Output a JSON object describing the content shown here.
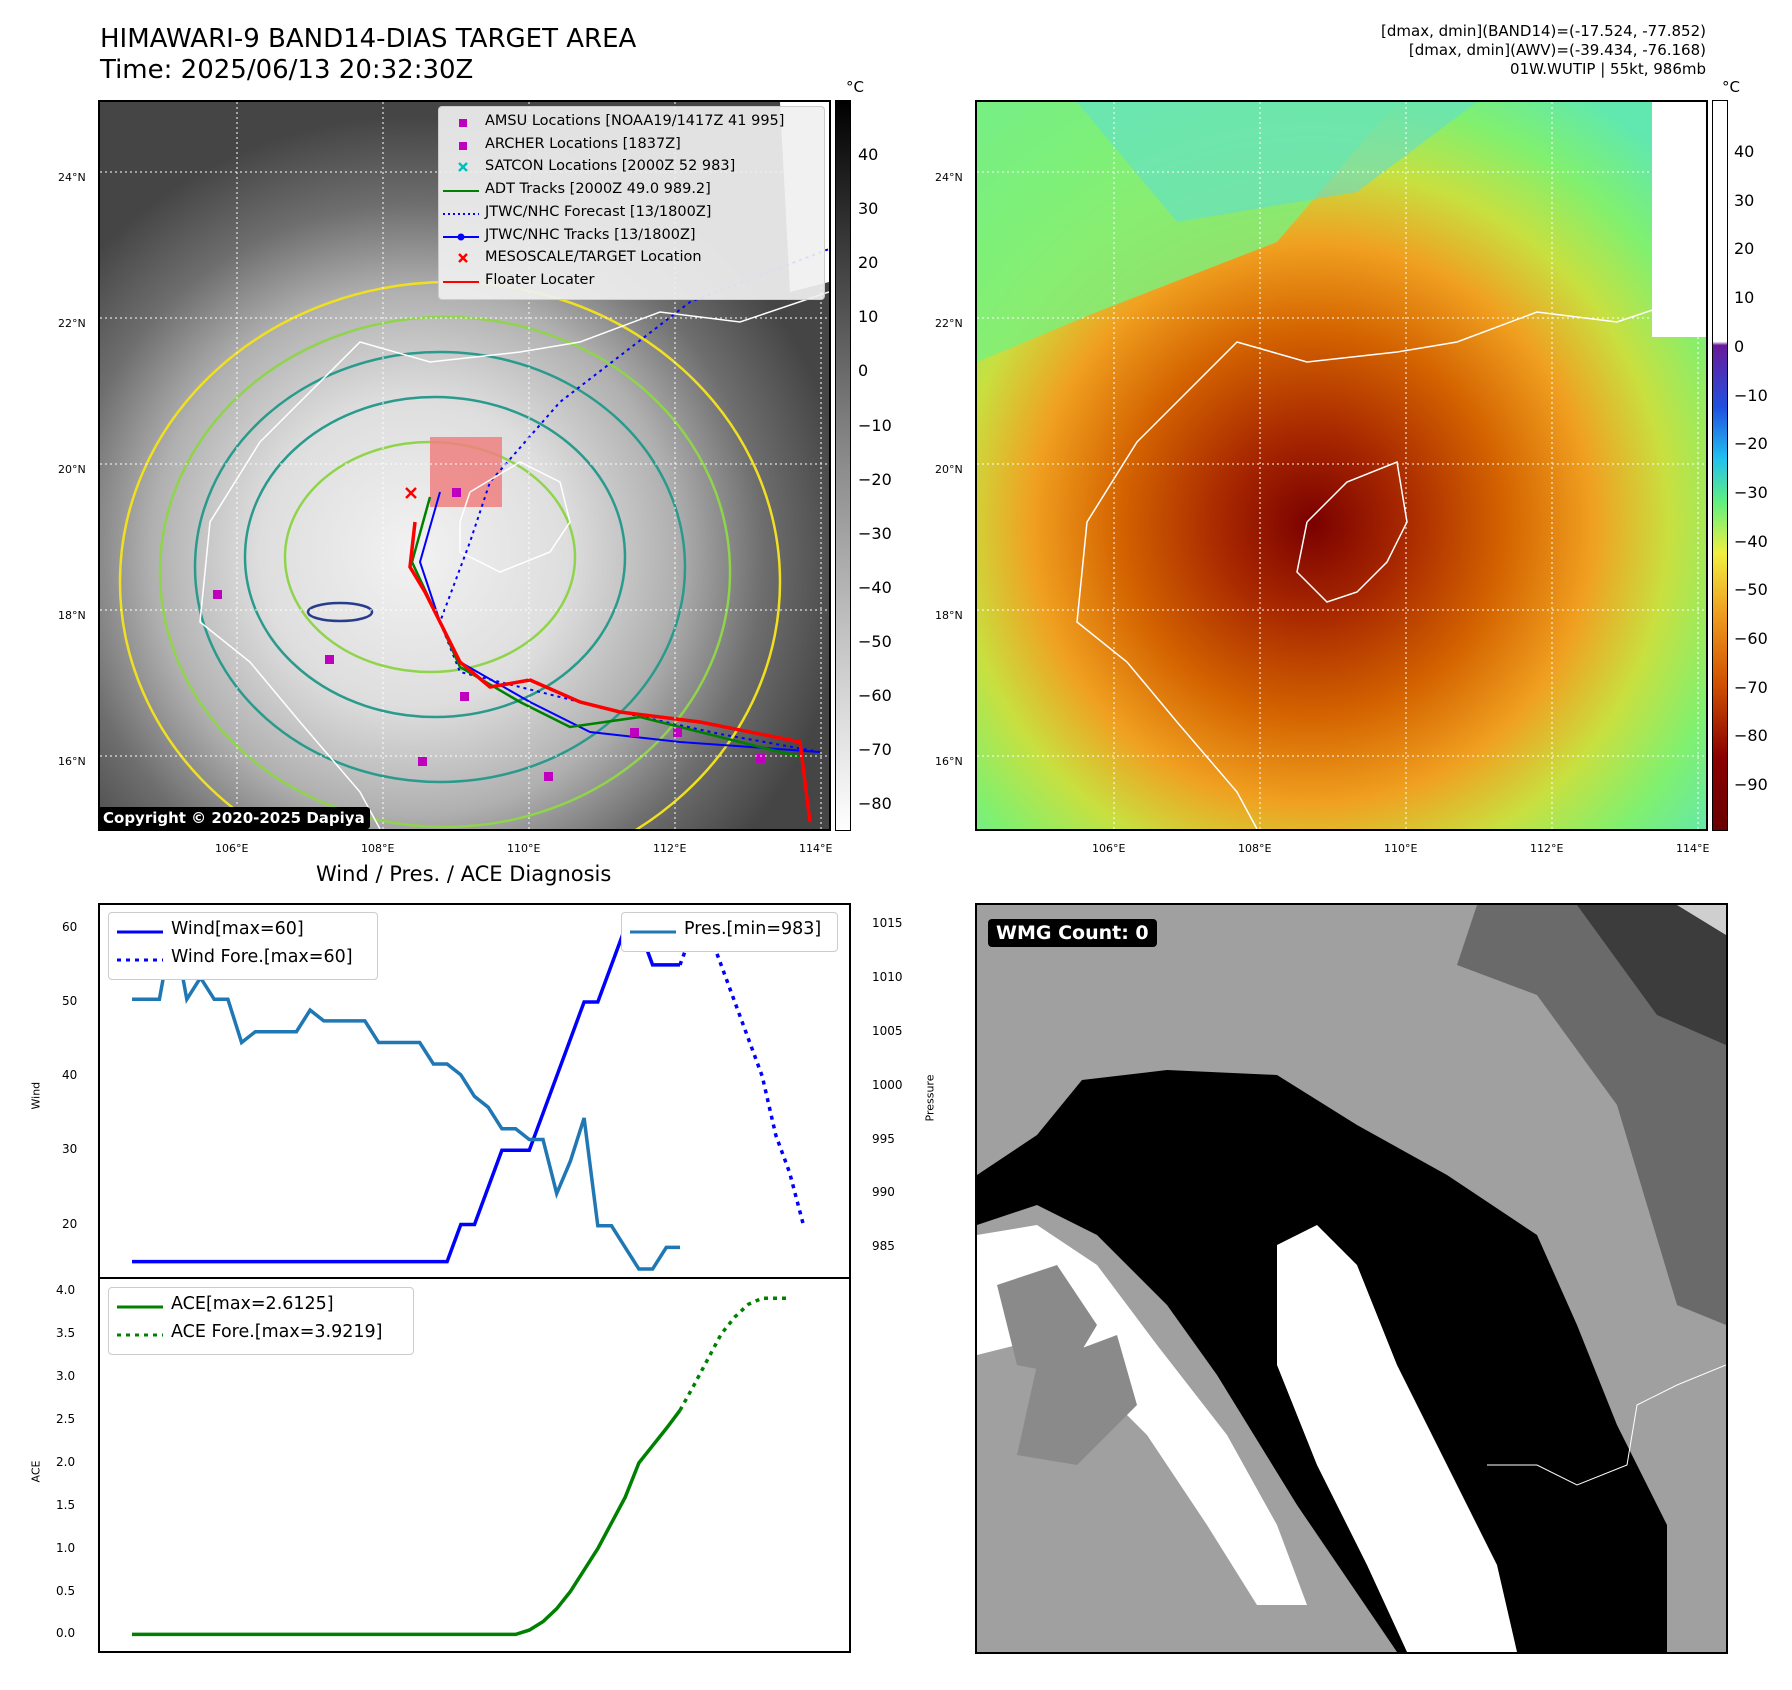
{
  "header": {
    "title_line1": "HIMAWARI-9 BAND14-DIAS TARGET AREA",
    "title_line2": "Time: 2025/06/13 20:32:30Z",
    "info_line1": "[dmax, dmin](BAND14)=(-17.524, -77.852)",
    "info_line2": "[dmax, dmin](AWV)=(-39.434, -76.168)",
    "info_line3": "01W.WUTIP | 55kt, 986mb"
  },
  "map_ir": {
    "unit": "°C",
    "colorbar_ticks": [
      "40",
      "30",
      "20",
      "10",
      "0",
      "−10",
      "−20",
      "−30",
      "−40",
      "−50",
      "−60",
      "−70",
      "−80"
    ],
    "lat_labels": [
      "24°N",
      "22°N",
      "20°N",
      "18°N",
      "16°N"
    ],
    "lon_labels": [
      "106°E",
      "108°E",
      "110°E",
      "112°E",
      "114°E"
    ],
    "legend": [
      {
        "label": "AMSU Locations [NOAA19/1417Z 41 995]",
        "color": "#bf00bf",
        "marker": "square"
      },
      {
        "label": "ARCHER Locations [1837Z]",
        "color": "#bf00bf",
        "marker": "square"
      },
      {
        "label": "SATCON Locations [2000Z 52 983]",
        "color": "#00bfbf",
        "marker": "x"
      },
      {
        "label": "ADT Tracks [2000Z 49.0 989.2]",
        "color": "#008000",
        "marker": "line"
      },
      {
        "label": "JTWC/NHC Forecast [13/1800Z]",
        "color": "#0000ff",
        "marker": "dotted"
      },
      {
        "label": "JTWC/NHC Tracks [13/1800Z]",
        "color": "#0000ff",
        "marker": "line-dot"
      },
      {
        "label": "MESOSCALE/TARGET Location",
        "color": "#ff0000",
        "marker": "x"
      },
      {
        "label": "Floater Locater",
        "color": "#ff0000",
        "marker": "line"
      }
    ],
    "copyright": "Copyright © 2020-2025 Dapiya"
  },
  "map_wv": {
    "unit": "°C",
    "colorbar_ticks": [
      "40",
      "30",
      "20",
      "10",
      "0",
      "−10",
      "−20",
      "−30",
      "−40",
      "−50",
      "−60",
      "−70",
      "−80",
      "−90"
    ],
    "lat_labels": [
      "24°N",
      "22°N",
      "20°N",
      "18°N",
      "16°N"
    ],
    "lon_labels": [
      "106°E",
      "108°E",
      "110°E",
      "112°E",
      "114°E"
    ]
  },
  "diagnosis": {
    "title": "Wind / Pres. / ACE Diagnosis",
    "wind_ylabel": "Wind",
    "pres_ylabel": "Pressure",
    "ace_ylabel": "ACE",
    "wind_legend": [
      "Wind[max=60]",
      "Wind Fore.[max=60]"
    ],
    "pres_legend": [
      "Pres.[min=983]"
    ],
    "ace_legend": [
      "ACE[max=2.6125]",
      "ACE Fore.[max=3.9219]"
    ],
    "wind_ticks": [
      "60",
      "50",
      "40",
      "30",
      "20"
    ],
    "pres_ticks": [
      "1015",
      "1010",
      "1005",
      "1000",
      "995",
      "990",
      "985"
    ],
    "ace_ticks": [
      "4.0",
      "3.5",
      "3.0",
      "2.5",
      "2.0",
      "1.5",
      "1.0",
      "0.5",
      "0.0"
    ]
  },
  "wmg": {
    "label": "WMG Count: 0"
  },
  "chart_data": [
    {
      "type": "line",
      "title": "Wind / Pres. / ACE Diagnosis",
      "ylabel": "Wind",
      "ylim": [
        14,
        62
      ],
      "series": [
        {
          "name": "Wind[max=60]",
          "color": "#0000ff",
          "style": "solid",
          "x": [
            0,
            1,
            2,
            3,
            4,
            5,
            6,
            7,
            8,
            9,
            10,
            11,
            12,
            13,
            14,
            15,
            16,
            17,
            18,
            19,
            20,
            21,
            22,
            23,
            24,
            25,
            26,
            27,
            28,
            29,
            30,
            31,
            32,
            33,
            34,
            35,
            36,
            37,
            38,
            39,
            40
          ],
          "values": [
            15,
            15,
            15,
            15,
            15,
            15,
            15,
            15,
            15,
            15,
            15,
            15,
            15,
            15,
            15,
            15,
            15,
            15,
            15,
            15,
            15,
            15,
            15,
            15,
            20,
            20,
            25,
            30,
            30,
            30,
            35,
            40,
            45,
            50,
            50,
            55,
            60,
            60,
            55,
            55,
            55
          ]
        },
        {
          "name": "Wind Fore.[max=60]",
          "color": "#0000ff",
          "style": "dotted",
          "x": [
            40,
            41,
            42,
            43,
            44,
            45,
            46,
            47,
            48,
            49
          ],
          "values": [
            55,
            60,
            60,
            55,
            50,
            45,
            40,
            32,
            27,
            20
          ]
        }
      ]
    },
    {
      "type": "line",
      "ylabel": "Pressure",
      "ylim": [
        983,
        1016
      ],
      "series": [
        {
          "name": "Pres.[min=983]",
          "color": "#1f77b4",
          "style": "solid",
          "x": [
            0,
            1,
            2,
            3,
            4,
            5,
            6,
            7,
            8,
            9,
            10,
            11,
            12,
            13,
            14,
            15,
            16,
            17,
            18,
            19,
            20,
            21,
            22,
            23,
            24,
            25,
            26,
            27,
            28,
            29,
            30,
            31,
            32,
            33,
            34,
            35,
            36,
            37,
            38,
            39,
            40
          ],
          "values": [
            1008,
            1008,
            1008,
            1015,
            1008,
            1010,
            1008,
            1008,
            1004,
            1005,
            1005,
            1005,
            1005,
            1007,
            1006,
            1006,
            1006,
            1006,
            1004,
            1004,
            1004,
            1004,
            1002,
            1002,
            1001,
            999,
            998,
            996,
            996,
            995,
            995,
            990,
            993,
            997,
            987,
            987,
            985,
            983,
            983,
            985,
            985
          ]
        }
      ]
    },
    {
      "type": "line",
      "ylabel": "ACE",
      "ylim": [
        -0.1,
        4.05
      ],
      "series": [
        {
          "name": "ACE[max=2.6125]",
          "color": "#008000",
          "style": "solid",
          "x": [
            0,
            5,
            10,
            15,
            20,
            25,
            27,
            28,
            29,
            30,
            31,
            32,
            33,
            34,
            35,
            36,
            37,
            38,
            39,
            40
          ],
          "values": [
            0,
            0,
            0,
            0,
            0,
            0,
            0,
            0,
            0.05,
            0.15,
            0.3,
            0.5,
            0.75,
            1.0,
            1.3,
            1.6,
            2.0,
            2.2,
            2.4,
            2.6125
          ]
        },
        {
          "name": "ACE Fore.[max=3.9219]",
          "color": "#008000",
          "style": "dotted",
          "x": [
            40,
            41,
            42,
            43,
            44,
            45,
            46,
            47,
            48
          ],
          "values": [
            2.6125,
            2.9,
            3.2,
            3.5,
            3.7,
            3.85,
            3.92,
            3.92,
            3.92
          ]
        }
      ]
    }
  ]
}
